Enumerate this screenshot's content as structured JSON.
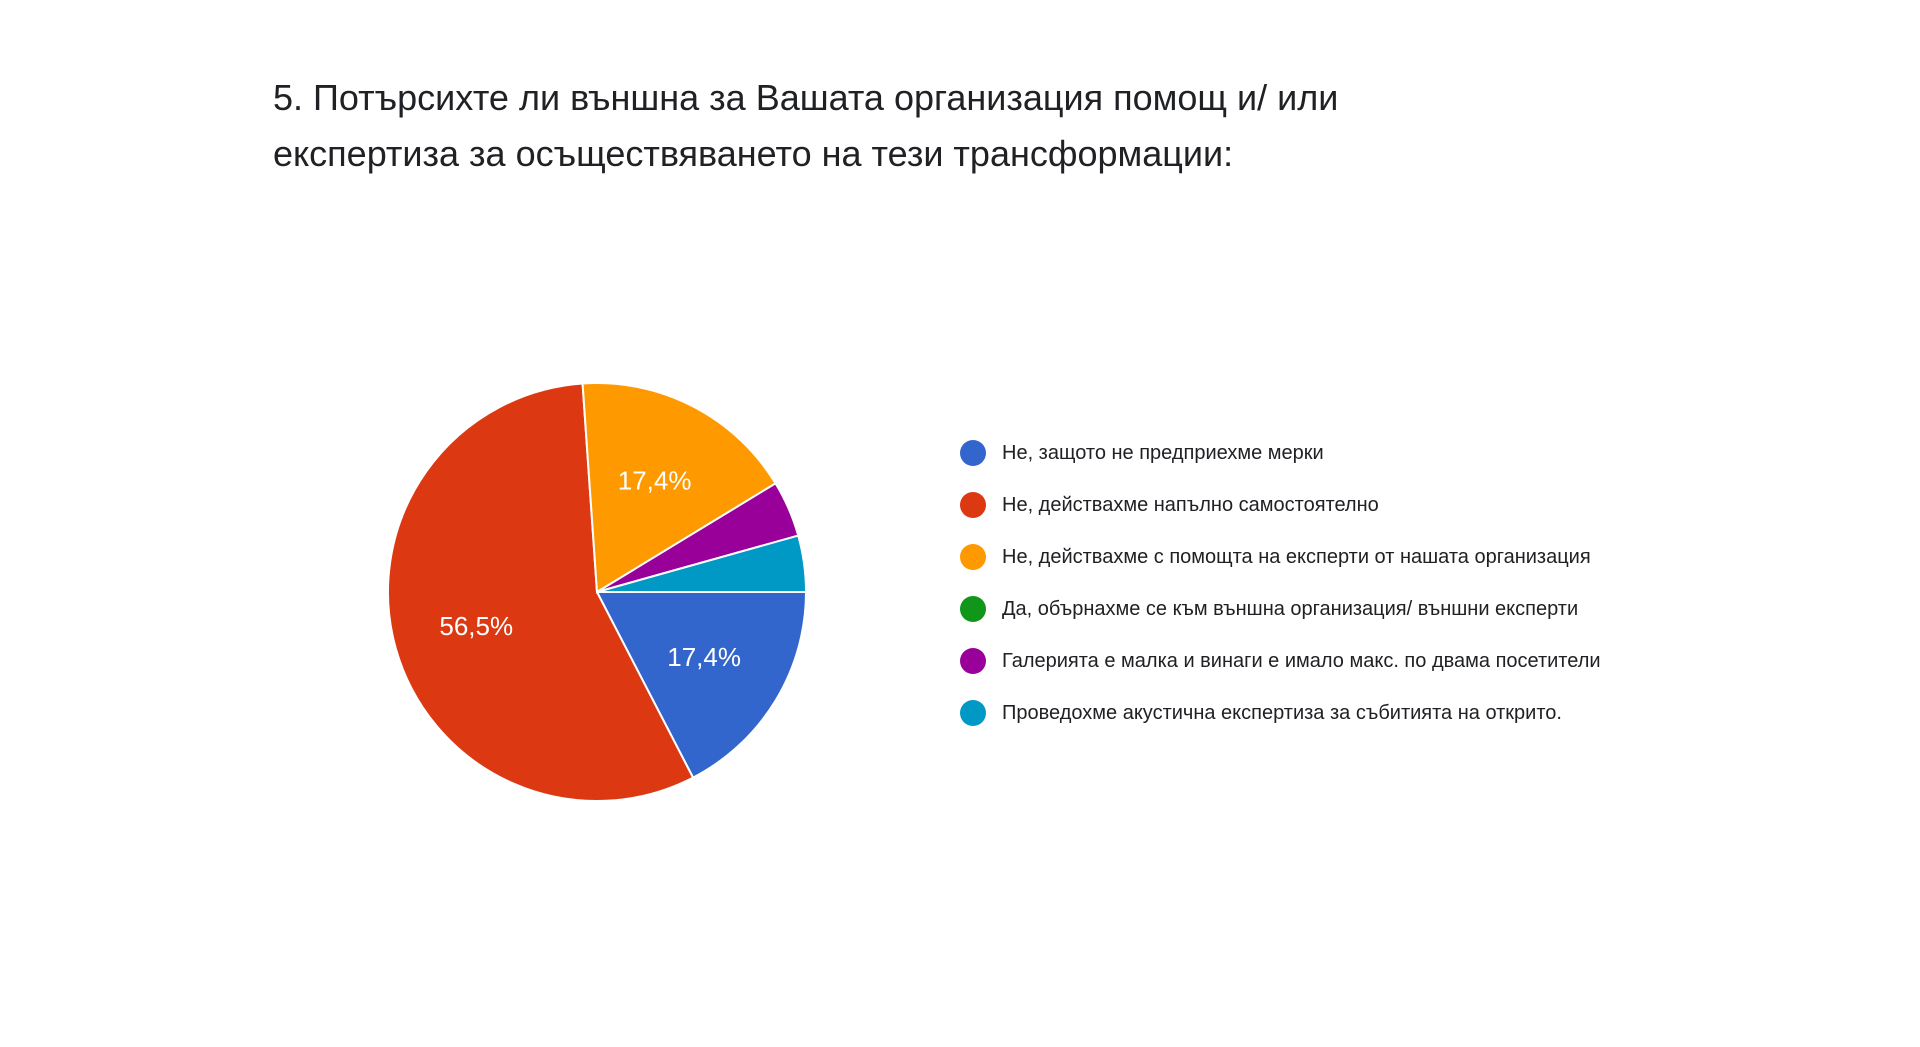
{
  "chart_data": {
    "type": "pie",
    "title_lines": [
      "5. Потърсихте ли външна за Вашата организация помощ и/ или",
      "експертиза за осъществяването на тези трансформации:"
    ],
    "legend_position": "right",
    "slices": [
      {
        "label": "Не, защото не предприехме мерки",
        "value": 17.4,
        "display": "17,4%",
        "color": "#3366cc"
      },
      {
        "label": "Не, действахме напълно самостоятелно",
        "value": 56.5,
        "display": "56,5%",
        "color": "#dc3912"
      },
      {
        "label": "Не, действахме с помощта на експерти от нашата организация",
        "value": 17.4,
        "display": "17,4%",
        "color": "#ff9900"
      },
      {
        "label": "Да, обърнахме се към външна организация/ външни експерти",
        "value": 0,
        "display": "",
        "color": "#109618"
      },
      {
        "label": "Галерията е малка и винаги е имало макс. по двама посетители",
        "value": 4.35,
        "display": "",
        "color": "#990099"
      },
      {
        "label": "Проведохме акустична експертиза за събитията на открито.",
        "value": 4.35,
        "display": "",
        "color": "#0099c6"
      }
    ]
  }
}
